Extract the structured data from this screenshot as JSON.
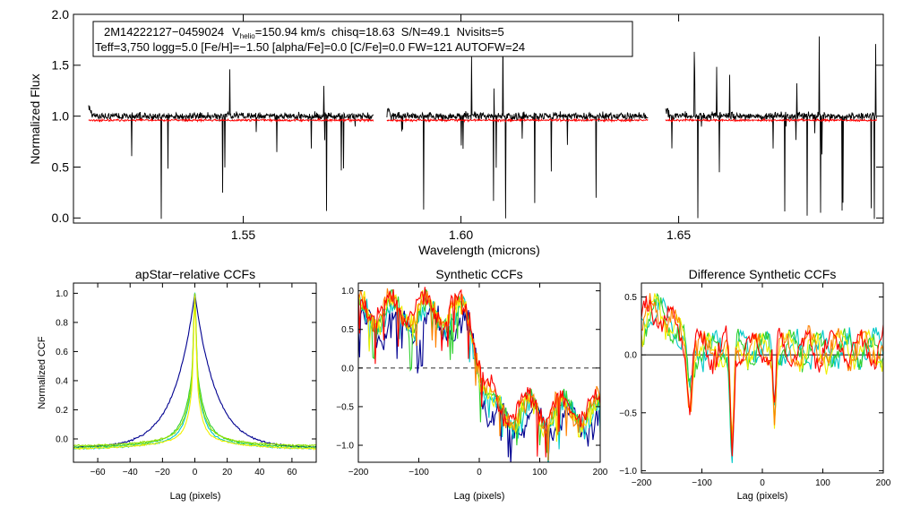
{
  "chart_data": [
    {
      "id": "spectrum",
      "type": "line",
      "title": "",
      "xlabel": "Wavelength (microns)",
      "ylabel": "Normalized Flux",
      "xlim": [
        1.511,
        1.697
      ],
      "ylim": [
        -0.05,
        2.0
      ],
      "xticks": [
        1.55,
        1.6,
        1.65
      ],
      "xtick_labels": [
        "1.55",
        "1.60",
        "1.65"
      ],
      "yticks": [
        0.0,
        0.5,
        1.0,
        1.5,
        2.0
      ],
      "ytick_labels": [
        "0.0",
        "0.5",
        "1.0",
        "1.5",
        "2.0"
      ],
      "annotation": {
        "star_id": "2M14222127−0459024",
        "vhelio_prefix": "V",
        "vhelio_sub": "helio",
        "vhelio_value": "=150.94 km/s",
        "rest_line1": "chisq=18.63  S/N=49.1  Nvisits=5",
        "line2": "Teff=3,750 logg=5.0 [Fe/H]=−1.50 [alpha/Fe]=0.0 [C/Fe]=0.0 FW=121 AUTOFW=24"
      },
      "chips": [
        [
          1.5145,
          1.58
        ],
        [
          1.583,
          1.643
        ],
        [
          1.647,
          1.6955
        ]
      ],
      "observed_level": 1.0,
      "model_level": 0.96,
      "series": [
        {
          "name": "observed",
          "color": "#000000"
        },
        {
          "name": "model",
          "color": "#ff0000"
        }
      ]
    },
    {
      "id": "apstar_ccf",
      "type": "line",
      "title": "apStar−relative CCFs",
      "xlabel": "Lag (pixels)",
      "ylabel": "Normalized CCF",
      "xlim": [
        -75,
        75
      ],
      "ylim": [
        -0.16,
        1.07
      ],
      "xticks": [
        -60,
        -40,
        -20,
        0,
        20,
        40,
        60
      ],
      "xtick_labels": [
        "−60",
        "−40",
        "−20",
        "0",
        "20",
        "40",
        "60"
      ],
      "yticks": [
        0.0,
        0.2,
        0.4,
        0.6,
        0.8,
        1.0
      ],
      "ytick_labels": [
        "0.0",
        "0.2",
        "0.4",
        "0.6",
        "0.8",
        "1.0"
      ],
      "series": [
        {
          "name": "combined",
          "color": "#000090",
          "peak": 1.0,
          "base": -0.06,
          "width": 13
        },
        {
          "name": "visit 1",
          "color": "#00c8c8",
          "peak": 1.0,
          "base": -0.07,
          "width": 4
        },
        {
          "name": "visit 2",
          "color": "#30d030",
          "peak": 1.0,
          "base": -0.06,
          "width": 5
        },
        {
          "name": "visit 3",
          "color": "#90e000",
          "peak": 1.0,
          "base": -0.05,
          "width": 4
        },
        {
          "name": "visit 4",
          "color": "#f0f000",
          "peak": 0.98,
          "base": -0.07,
          "width": 3
        }
      ]
    },
    {
      "id": "synthetic_ccf",
      "type": "line",
      "title": "Synthetic CCFs",
      "xlabel": "Lag (pixels)",
      "ylabel": "",
      "xlim": [
        -200,
        200
      ],
      "ylim": [
        -1.22,
        1.1
      ],
      "xticks": [
        -200,
        -100,
        0,
        100,
        200
      ],
      "xtick_labels": [
        "−200",
        "−100",
        "0",
        "100",
        "200"
      ],
      "yticks": [
        -1.0,
        -0.5,
        0.0,
        0.5,
        1.0
      ],
      "ytick_labels": [
        "−1.0",
        "−0.5",
        "0.0",
        "0.5",
        "1.0"
      ],
      "reference_line": 0.0,
      "series": [
        {
          "name": "combined",
          "color": "#000090",
          "level_left": 0.55,
          "level_right": -0.7
        },
        {
          "name": "visit 1",
          "color": "#00c8c8",
          "level_left": 0.65,
          "level_right": -0.6
        },
        {
          "name": "visit 2",
          "color": "#30d030",
          "level_left": 0.7,
          "level_right": -0.55
        },
        {
          "name": "visit 3",
          "color": "#f0f000",
          "level_left": 0.72,
          "level_right": -0.6
        },
        {
          "name": "visit 4",
          "color": "#ff8000",
          "level_left": 0.75,
          "level_right": -0.55
        },
        {
          "name": "visit 5",
          "color": "#ff0000",
          "level_left": 0.78,
          "level_right": -0.5
        }
      ]
    },
    {
      "id": "difference_ccf",
      "type": "line",
      "title": "Difference Synthetic CCFs",
      "xlabel": "Lag (pixels)",
      "ylabel": "",
      "xlim": [
        -200,
        200
      ],
      "ylim": [
        -1.02,
        0.62
      ],
      "xticks": [
        -200,
        -100,
        0,
        100,
        200
      ],
      "xtick_labels": [
        "−200",
        "−100",
        "0",
        "100",
        "200"
      ],
      "yticks": [
        -1.0,
        -0.5,
        0.0,
        0.5
      ],
      "ytick_labels": [
        "−1.0",
        "−0.5",
        "0.0",
        "0.5"
      ],
      "reference_line": 0.0,
      "series": [
        {
          "name": "visit 1",
          "color": "#00c8c8"
        },
        {
          "name": "visit 2",
          "color": "#30d030"
        },
        {
          "name": "visit 3",
          "color": "#f0f000"
        },
        {
          "name": "visit 4",
          "color": "#ff8000"
        },
        {
          "name": "visit 5",
          "color": "#ff0000"
        }
      ]
    }
  ]
}
